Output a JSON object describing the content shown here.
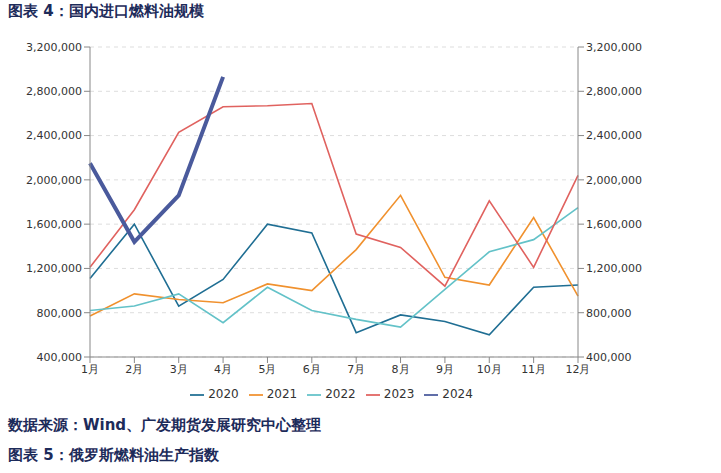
{
  "chart_data": {
    "type": "line",
    "title": "图表 4：国内进口燃料油规模",
    "categories": [
      "1月",
      "2月",
      "3月",
      "4月",
      "5月",
      "6月",
      "7月",
      "8月",
      "9月",
      "10月",
      "11月",
      "12月"
    ],
    "series": [
      {
        "name": "2020",
        "color": "#1f6e93",
        "values": [
          1110000,
          1600000,
          860000,
          1100000,
          1600000,
          1520000,
          620000,
          780000,
          720000,
          600000,
          1030000,
          1050000
        ]
      },
      {
        "name": "2021",
        "color": "#f0912e",
        "values": [
          770000,
          970000,
          920000,
          890000,
          1060000,
          1000000,
          1370000,
          1860000,
          1120000,
          1050000,
          1660000,
          950000
        ]
      },
      {
        "name": "2022",
        "color": "#63c2c8",
        "values": [
          820000,
          860000,
          970000,
          710000,
          1030000,
          820000,
          740000,
          670000,
          1010000,
          1350000,
          1460000,
          1750000
        ]
      },
      {
        "name": "2023",
        "color": "#e0625f",
        "values": [
          1210000,
          1730000,
          2430000,
          2660000,
          2670000,
          2690000,
          1510000,
          1390000,
          1040000,
          1810000,
          1210000,
          2040000
        ]
      },
      {
        "name": "2024",
        "color": "#4a5a9c",
        "values": [
          2150000,
          1440000,
          1860000,
          2930000,
          null,
          null,
          null,
          null,
          null,
          null,
          null,
          null
        ]
      }
    ],
    "ylim": [
      400000,
      3200000
    ],
    "yticks": [
      {
        "value": 400000,
        "label": "400,000"
      },
      {
        "value": 800000,
        "label": "800,000"
      },
      {
        "value": 1200000,
        "label": "1,200,000"
      },
      {
        "value": 1600000,
        "label": "1,600,000"
      },
      {
        "value": 2000000,
        "label": "2,000,000"
      },
      {
        "value": 2400000,
        "label": "2,400,000"
      },
      {
        "value": 2800000,
        "label": "2,800,000"
      },
      {
        "value": 3200000,
        "label": "3,200,000"
      }
    ],
    "y2lim": [
      400000,
      3200000
    ],
    "y2ticks": [
      {
        "value": 400000,
        "label": "400,000"
      },
      {
        "value": 800000,
        "label": "800,000"
      },
      {
        "value": 1200000,
        "label": "1,200,000"
      },
      {
        "value": 1600000,
        "label": "1,600,000"
      },
      {
        "value": 2000000,
        "label": "2,000,000"
      },
      {
        "value": 2400000,
        "label": "2,400,000"
      },
      {
        "value": 2800000,
        "label": "2,800,000"
      },
      {
        "value": 3200000,
        "label": "3,200,000"
      }
    ],
    "grid": true,
    "legend": "bottom",
    "annotations": [
      "数据来源：Wind、广发期货发展研究中心整理",
      "图表 5：俄罗斯燃料油生产指数"
    ]
  }
}
